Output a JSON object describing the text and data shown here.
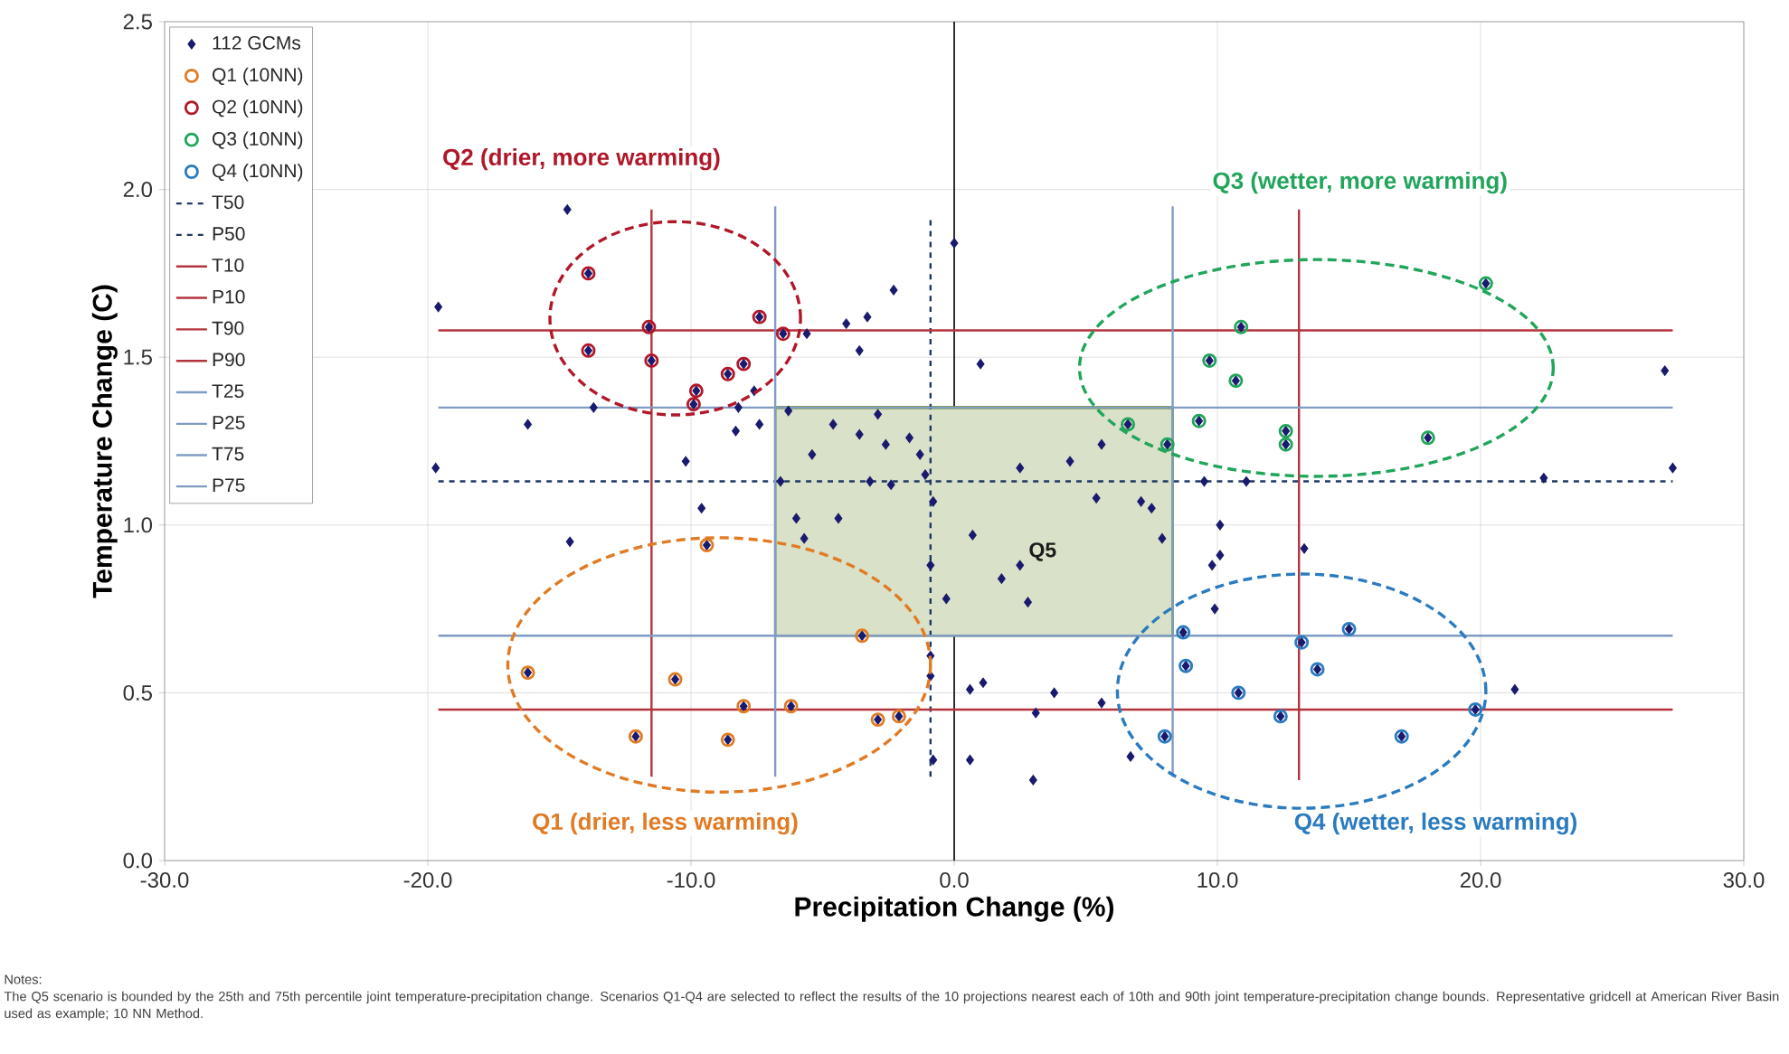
{
  "chart_data": {
    "type": "scatter",
    "xlabel": "Precipitation Change (%)",
    "ylabel": "Temperature Change (C)",
    "xlim": [
      -30,
      30
    ],
    "ylim": [
      0,
      2.5
    ],
    "xticks": [
      {
        "value": -30,
        "label": "-30.0"
      },
      {
        "value": -20,
        "label": "-20.0"
      },
      {
        "value": -10,
        "label": "-10.0"
      },
      {
        "value": 0,
        "label": "0.0"
      },
      {
        "value": 10,
        "label": "10.0"
      },
      {
        "value": 20,
        "label": "20.0"
      },
      {
        "value": 30,
        "label": "30.0"
      }
    ],
    "yticks": [
      {
        "value": 0,
        "label": "0.0"
      },
      {
        "value": 0.5,
        "label": "0.5"
      },
      {
        "value": 1,
        "label": "1.0"
      },
      {
        "value": 1.5,
        "label": "1.5"
      },
      {
        "value": 2,
        "label": "2.0"
      },
      {
        "value": 2.5,
        "label": "2.5"
      }
    ],
    "grid": true,
    "legend": "top left",
    "ref_lines": [
      {
        "axis": "x",
        "value": 0,
        "color": "#000000"
      }
    ],
    "series": [
      {
        "type": "line",
        "color": "#77933c",
        "marker": "none",
        "line_style": "solid",
        "x": [
          -6.8,
          8.3
        ],
        "values": [
          1.35,
          1.35
        ],
        "lower": [
          0.67,
          0.67
        ],
        "upper": [
          1.35,
          1.35
        ]
      },
      {
        "name": "112 GCMs",
        "type": "scatter",
        "color": "#1a1a6e",
        "marker": "diamond",
        "x": [
          -14.7,
          -19.6,
          -5.6,
          -4.1,
          -3.3,
          -2.3,
          -3.6,
          -7.6,
          -13.7,
          -8.2,
          -16.2,
          -8.3,
          -7.4,
          -10.2,
          -19.7,
          -9.6,
          -14.6,
          0.0,
          -6.3,
          -4.6,
          -2.9,
          -3.6,
          -2.6,
          -1.7,
          -5.4,
          -1.3,
          -6.6,
          -3.2,
          -2.4,
          -1.1,
          -0.8,
          -6.0,
          -4.4,
          -5.7,
          -0.9,
          -0.3,
          -13.9,
          -11.6,
          -13.9,
          -11.5,
          -7.4,
          -6.5,
          -8.0,
          -8.6,
          -9.8,
          -9.9,
          -9.4,
          -16.2,
          -10.6,
          -8.0,
          -6.2,
          -3.5,
          -12.1,
          -8.6,
          -2.9,
          -2.1,
          -0.9,
          -0.9,
          -0.8,
          1.0,
          2.5,
          4.4,
          5.6,
          0.7,
          5.4,
          7.1,
          7.5,
          7.9,
          2.5,
          1.8,
          2.8,
          6.6,
          8.1,
          9.3,
          9.7,
          10.7,
          10.9,
          12.6,
          12.6,
          20.2,
          18.0,
          9.5,
          11.1,
          10.1,
          10.1,
          9.8,
          13.3,
          9.9,
          0.6,
          1.1,
          3.8,
          3.1,
          5.6,
          0.6,
          3.0,
          6.7,
          8.7,
          8.8,
          10.8,
          8.0,
          12.4,
          13.2,
          13.8,
          15.0,
          17.0,
          19.8,
          27.0,
          22.4,
          27.3,
          21.3
        ],
        "values": [
          1.94,
          1.65,
          1.57,
          1.6,
          1.62,
          1.7,
          1.52,
          1.4,
          1.35,
          1.35,
          1.3,
          1.28,
          1.3,
          1.19,
          1.17,
          1.05,
          0.95,
          1.84,
          1.34,
          1.3,
          1.33,
          1.27,
          1.24,
          1.26,
          1.21,
          1.21,
          1.13,
          1.13,
          1.12,
          1.15,
          1.07,
          1.02,
          1.02,
          0.96,
          0.88,
          0.78,
          1.75,
          1.59,
          1.52,
          1.49,
          1.62,
          1.57,
          1.48,
          1.45,
          1.4,
          1.36,
          0.94,
          0.56,
          0.54,
          0.46,
          0.46,
          0.67,
          0.37,
          0.36,
          0.42,
          0.43,
          0.61,
          0.55,
          0.3,
          1.48,
          1.17,
          1.19,
          1.24,
          0.97,
          1.08,
          1.07,
          1.05,
          0.96,
          0.88,
          0.84,
          0.77,
          1.3,
          1.24,
          1.31,
          1.49,
          1.43,
          1.59,
          1.28,
          1.24,
          1.72,
          1.26,
          1.13,
          1.13,
          1.0,
          0.91,
          0.88,
          0.93,
          0.75,
          0.51,
          0.53,
          0.5,
          0.44,
          0.47,
          0.3,
          0.24,
          0.31,
          0.68,
          0.58,
          0.5,
          0.37,
          0.43,
          0.65,
          0.57,
          0.69,
          0.37,
          0.45,
          1.46,
          1.14,
          1.17,
          0.51
        ]
      },
      {
        "name": "Q1 (10NN)",
        "type": "scatter",
        "color": "#e07b24",
        "marker": "circle",
        "x": [
          -9.4,
          -16.2,
          -10.6,
          -8.0,
          -6.2,
          -3.5,
          -12.1,
          -8.6,
          -2.9,
          -2.1
        ],
        "values": [
          0.94,
          0.56,
          0.54,
          0.46,
          0.46,
          0.67,
          0.37,
          0.36,
          0.42,
          0.43
        ]
      },
      {
        "name": "Q2 (10NN)",
        "type": "scatter",
        "color": "#b0182a",
        "marker": "circle",
        "x": [
          -13.9,
          -11.6,
          -13.9,
          -11.5,
          -7.4,
          -6.5,
          -8.0,
          -8.6,
          -9.8,
          -9.9
        ],
        "values": [
          1.75,
          1.59,
          1.52,
          1.49,
          1.62,
          1.57,
          1.48,
          1.45,
          1.4,
          1.36
        ]
      },
      {
        "name": "Q3 (10NN)",
        "type": "scatter",
        "color": "#21a55b",
        "marker": "circle",
        "x": [
          6.6,
          8.1,
          9.3,
          9.7,
          10.7,
          10.9,
          12.6,
          12.6,
          20.2,
          18.0
        ],
        "values": [
          1.3,
          1.24,
          1.31,
          1.49,
          1.43,
          1.59,
          1.28,
          1.24,
          1.72,
          1.26
        ]
      },
      {
        "name": "Q4 (10NN)",
        "type": "scatter",
        "color": "#2a7bbf",
        "marker": "circle",
        "x": [
          8.7,
          8.8,
          10.8,
          8.0,
          12.4,
          13.2,
          13.8,
          15.0,
          17.0,
          19.8
        ],
        "values": [
          0.68,
          0.58,
          0.5,
          0.37,
          0.43,
          0.65,
          0.57,
          0.69,
          0.37,
          0.45
        ]
      },
      {
        "name": "T50",
        "type": "line",
        "color": "#1f3864",
        "marker": "none",
        "line_style": "dashed",
        "x": [
          -19.6,
          27.3
        ],
        "values": [
          1.13,
          1.13
        ]
      },
      {
        "name": "P50",
        "type": "line",
        "color": "#1f3864",
        "marker": "none",
        "line_style": "dashed",
        "x": [
          -0.9,
          -0.9
        ],
        "values": [
          0.25,
          1.91
        ]
      },
      {
        "name": "T10",
        "type": "line",
        "color": "#b5343c",
        "marker": "none",
        "line_style": "solid",
        "x": [
          -19.6,
          27.3
        ],
        "values": [
          0.45,
          0.45
        ]
      },
      {
        "name": "P10",
        "type": "line",
        "color": "#b5343c",
        "marker": "none",
        "line_style": "solid",
        "x": [
          -11.5,
          -11.5
        ],
        "values": [
          0.25,
          1.94
        ]
      },
      {
        "name": "T90",
        "type": "line",
        "color": "#b5343c",
        "marker": "none",
        "line_style": "solid",
        "x": [
          -19.6,
          27.3
        ],
        "values": [
          1.58,
          1.58
        ]
      },
      {
        "name": "P90",
        "type": "line",
        "color": "#b5343c",
        "marker": "none",
        "line_style": "solid",
        "x": [
          13.1,
          13.1
        ],
        "values": [
          0.24,
          1.94
        ]
      },
      {
        "name": "T25",
        "type": "line",
        "color": "#7f9cc4",
        "marker": "none",
        "line_style": "solid",
        "x": [
          -19.6,
          27.3
        ],
        "values": [
          0.67,
          0.67
        ]
      },
      {
        "name": "P25",
        "type": "line",
        "color": "#7f9cc4",
        "marker": "none",
        "line_style": "solid",
        "x": [
          -6.8,
          -6.8
        ],
        "values": [
          0.25,
          1.95
        ]
      },
      {
        "name": "T75",
        "type": "line",
        "color": "#7f9cc4",
        "marker": "none",
        "line_style": "solid",
        "x": [
          -19.6,
          27.3
        ],
        "values": [
          1.35,
          1.35
        ]
      },
      {
        "name": "P75",
        "type": "line",
        "color": "#7f9cc4",
        "marker": "none",
        "line_style": "solid",
        "x": [
          8.3,
          8.3
        ],
        "values": [
          0.25,
          1.95
        ]
      }
    ],
    "annotations": [
      "Q2 (drier, more warming)",
      "Q3 (wetter, more warming)",
      "Q1 (drier, less warming)",
      "Q4 (wetter, less warming)",
      "Q5",
      "Notes:",
      "The Q5 scenario is bounded by the 25th and 75th percentile joint temperature-precipitation change.  Scenarios Q1-Q4 are selected to reflect the results of the 10 projections nearest each of 10th and 90th joint temperature-precipitation change bounds.  Representative gridcell at American River Basin used as example; 10 NN Method."
    ]
  }
}
